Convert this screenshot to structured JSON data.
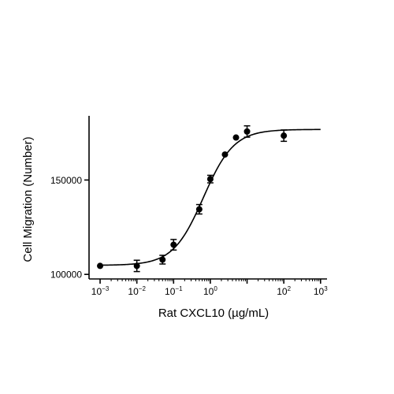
{
  "chart_data": {
    "type": "scatter",
    "title": "",
    "xlabel": "Rat CXCL10 (µg/mL)",
    "ylabel": "Cell Migration (Number)",
    "x_scale": "log",
    "xlim": [
      0.0005,
      1500
    ],
    "ylim": [
      98000,
      184000
    ],
    "x_ticks": [
      {
        "base": "10",
        "exp": "-3"
      },
      {
        "base": "10",
        "exp": "-2"
      },
      {
        "base": "10",
        "exp": "-1"
      },
      {
        "base": "10",
        "exp": "0"
      },
      {
        "base": "10",
        "exp": "2"
      },
      {
        "base": "10",
        "exp": "3"
      }
    ],
    "y_ticks": [
      "100000",
      "150000"
    ],
    "grid": false,
    "marker_color": "#000000",
    "series": [
      {
        "x": [
          0.001,
          0.01,
          0.05,
          0.1,
          0.5,
          1,
          2.5,
          5,
          10,
          100
        ],
        "y": [
          104500,
          104500,
          107800,
          115700,
          134500,
          150500,
          163500,
          172500,
          175700,
          173500
        ],
        "err": [
          0,
          3000,
          2300,
          2800,
          2500,
          2000,
          0,
          0,
          3000,
          3000
        ]
      }
    ],
    "fit_curve": {
      "model": "4PL",
      "bottom": 104800,
      "top": 176800,
      "ec50": 0.65,
      "hill": 1.05
    }
  }
}
